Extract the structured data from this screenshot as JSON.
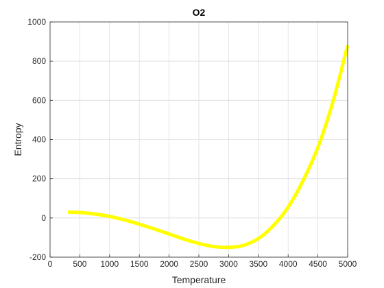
{
  "chart_data": {
    "type": "line",
    "title": "O2",
    "xlabel": "Temperature",
    "ylabel": "Entropy",
    "xlim": [
      0,
      5000
    ],
    "ylim": [
      -200,
      1000
    ],
    "xticks": [
      0,
      500,
      1000,
      1500,
      2000,
      2500,
      3000,
      3500,
      4000,
      4500,
      5000
    ],
    "yticks": [
      -200,
      0,
      200,
      400,
      600,
      800,
      1000
    ],
    "xtick_labels": [
      "0",
      "500",
      "1000",
      "1500",
      "2000",
      "2500",
      "3000",
      "3500",
      "4000",
      "4500",
      "5000"
    ],
    "ytick_labels": [
      "-200",
      "0",
      "200",
      "400",
      "600",
      "800",
      "1000"
    ],
    "grid": true,
    "series": [
      {
        "color": "#ffff00",
        "x": [
          300,
          500,
          750,
          1000,
          1250,
          1500,
          1750,
          2000,
          2250,
          2500,
          2750,
          3000,
          3250,
          3500,
          3750,
          4000,
          4250,
          4500,
          4750,
          5000
        ],
        "y": [
          30,
          28,
          20,
          8,
          -10,
          -32,
          -56,
          -82,
          -108,
          -130,
          -146,
          -150,
          -140,
          -105,
          -40,
          55,
          190,
          360,
          590,
          880
        ]
      }
    ]
  }
}
